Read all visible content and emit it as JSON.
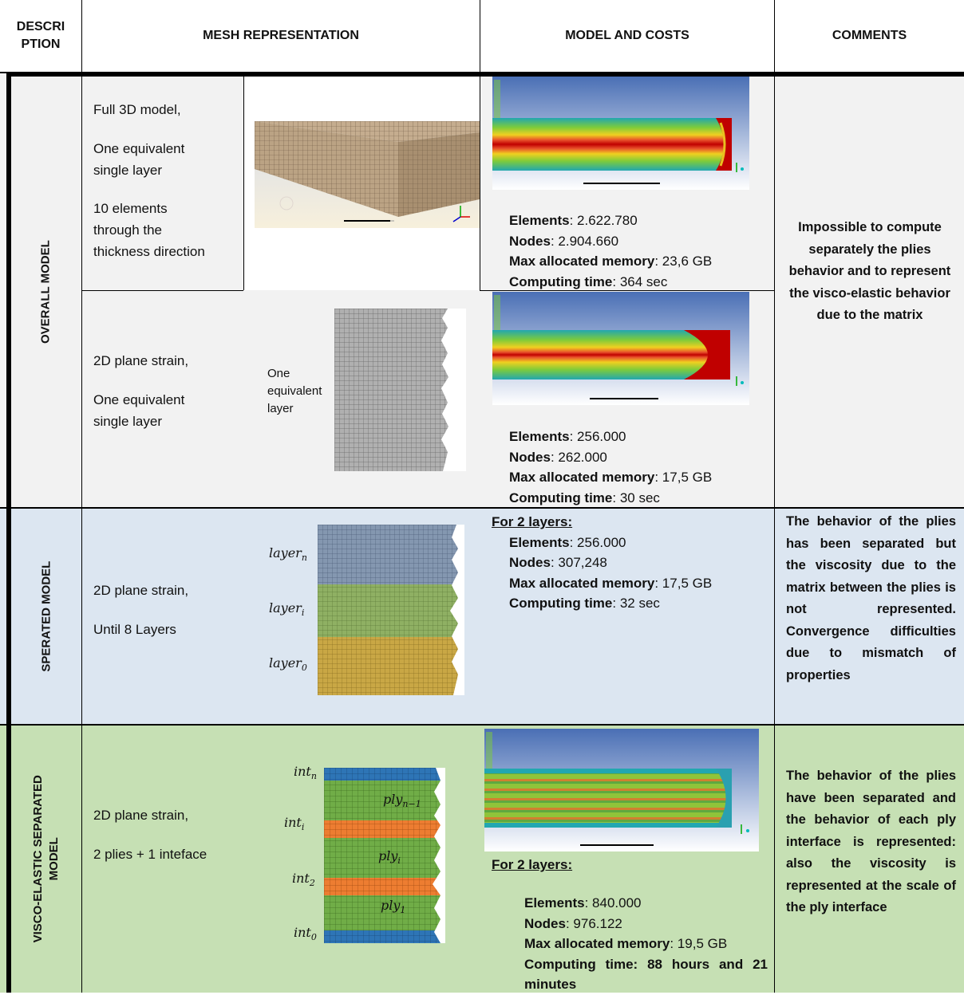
{
  "headers": {
    "description": "DESCRIPTION",
    "description_line1": "DESCRI",
    "description_line2": "PTION",
    "mesh": "MESH REPRESENTATION",
    "model": "MODEL AND COSTS",
    "comments": "COMMENTS"
  },
  "rows": {
    "overall": {
      "label": "OVERALL MODEL",
      "sub1": {
        "desc": [
          "Full 3D model,",
          "One equivalent single layer",
          "10 elements through the thickness direction"
        ],
        "desc_lines": {
          "l1": "Full 3D model,",
          "l2": "One equivalent",
          "l3": "single layer",
          "l4": "10 elements",
          "l5": "through the",
          "l6": "thickness direction"
        },
        "costs": {
          "elements_label": "Elements",
          "elements": ": 2.622.780",
          "nodes_label": "Nodes",
          "nodes": ": 2.904.660",
          "memory_label": "Max allocated memory",
          "memory": ": 23,6 GB",
          "time_label": "Computing time",
          "time": ": 364 sec"
        }
      },
      "sub2": {
        "desc_lines": {
          "l1": "2D plane strain,",
          "l2": "One equivalent",
          "l3": "single layer"
        },
        "mesh_caption": {
          "l1": "One",
          "l2": "equivalent",
          "l3": "layer"
        },
        "costs": {
          "elements_label": "Elements",
          "elements": ": 256.000",
          "nodes_label": "Nodes",
          "nodes": ": 262.000",
          "memory_label": "Max allocated memory",
          "memory": ": 17,5 GB",
          "time_label": "Computing time",
          "time": ": 30 sec"
        }
      },
      "comment": "Impossible to compute separately the plies behavior and to represent the visco-elastic behavior due to the matrix"
    },
    "separated": {
      "label": "SPERATED MODEL",
      "desc_lines": {
        "l1": "2D plane strain,",
        "l2": "Until 8 Layers"
      },
      "layer_labels": {
        "base": "layer",
        "n": "n",
        "i": "i",
        "zero": "0"
      },
      "costs": {
        "heading": "For 2 layers:",
        "elements_label": "Elements",
        "elements": ": 256.000",
        "nodes_label": "Nodes",
        "nodes": ": 307,248",
        "memory_label": "Max allocated memory",
        "memory": ": 17,5 GB",
        "time_label": "Computing time",
        "time": ": 32 sec"
      },
      "comment": "The behavior of the plies has been separated but the viscosity due to the matrix between the plies is not represented. Convergence difficulties due to mismatch of properties"
    },
    "visco": {
      "label_line1": "VISCO-ELASTIC SEPARATED",
      "label_line2": "MODEL",
      "desc_lines": {
        "l1": "2D plane strain,",
        "l2": "2 plies + 1 inteface"
      },
      "mesh_labels": {
        "int": "int",
        "ply": "ply",
        "int_n": "n",
        "int_i": "i",
        "int_2": "2",
        "int_0": "0",
        "ply_n1": "n−1",
        "ply_i": "i",
        "ply_1": "1"
      },
      "costs": {
        "heading": "For 2 layers:",
        "elements_label": "Elements",
        "elements": ": 840.000",
        "nodes_label": "Nodes",
        "nodes": ": 976.122",
        "memory_label": "Max allocated memory",
        "memory": ": 19,5 GB",
        "time_label": "Computing time",
        "time": ": 88 hours and 21 minutes"
      },
      "comment": "The behavior of the plies have been separated and the behavior of each ply interface is represented: also the viscosity is represented at the scale of the ply interface"
    }
  },
  "colors": {
    "overall_bg": "#f2f2f2",
    "separated_bg": "#dce6f1",
    "visco_bg": "#c6e0b4",
    "ply_green": "#70ad47",
    "interface_orange": "#ed7d31",
    "interface_blue": "#2e75b6",
    "layer_blue": "#8497b0",
    "layer_gold": "#c9a745",
    "contour_red": "#c00000"
  }
}
